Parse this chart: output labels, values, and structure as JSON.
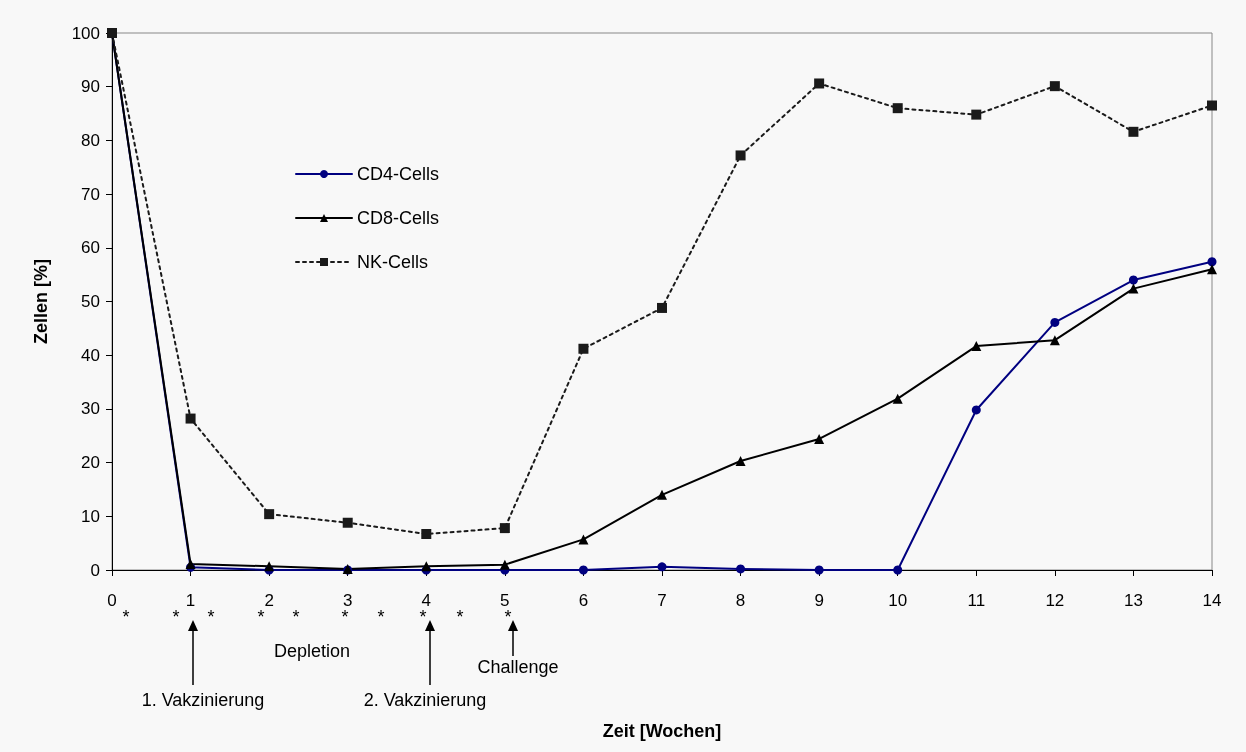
{
  "chart_data": {
    "type": "line",
    "ylabel": "Zellen [%]",
    "x": [
      0,
      1,
      2,
      3,
      4,
      5,
      6,
      7,
      8,
      9,
      10,
      11,
      12,
      13,
      14
    ],
    "xlim": [
      0,
      14
    ],
    "xticks": [
      0,
      1,
      2,
      3,
      4,
      5,
      6,
      7,
      8,
      9,
      10,
      11,
      12,
      13,
      14
    ],
    "ylim": [
      0,
      100
    ],
    "yticks": [
      0,
      10,
      20,
      30,
      40,
      50,
      60,
      70,
      80,
      90,
      100
    ],
    "grid": false,
    "legend": "top left",
    "series": [
      {
        "name": "CD4-Cells",
        "color": "#000080",
        "marker": "circle",
        "line_style": "solid",
        "values": [
          100,
          0.5,
          0,
          0,
          0,
          0,
          0,
          0.6,
          0.2,
          0,
          0,
          29.8,
          46.1,
          54,
          57.4
        ]
      },
      {
        "name": "CD8-Cells",
        "color": "#000000",
        "marker": "triangle",
        "line_style": "solid",
        "values": [
          100,
          1.1,
          0.7,
          0.2,
          0.7,
          1,
          5.7,
          14,
          20.3,
          24.4,
          31.9,
          41.7,
          42.8,
          52.4,
          56
        ]
      },
      {
        "name": "NK-Cells",
        "color": "#1a1a1a",
        "marker": "square",
        "line_style": "dotted",
        "values": [
          100,
          28.2,
          10.4,
          8.8,
          6.7,
          7.8,
          41.2,
          48.8,
          77.2,
          90.6,
          86,
          84.8,
          90.1,
          81.6,
          86.5
        ]
      }
    ],
    "annotations": [
      "*",
      "*",
      "*",
      "*",
      "*",
      "*",
      "*",
      "*",
      "*",
      "*",
      "Depletion",
      "1. Vakzinierung",
      "2. Vakzinierung",
      "Challenge",
      "Zeit [Wochen]"
    ]
  }
}
